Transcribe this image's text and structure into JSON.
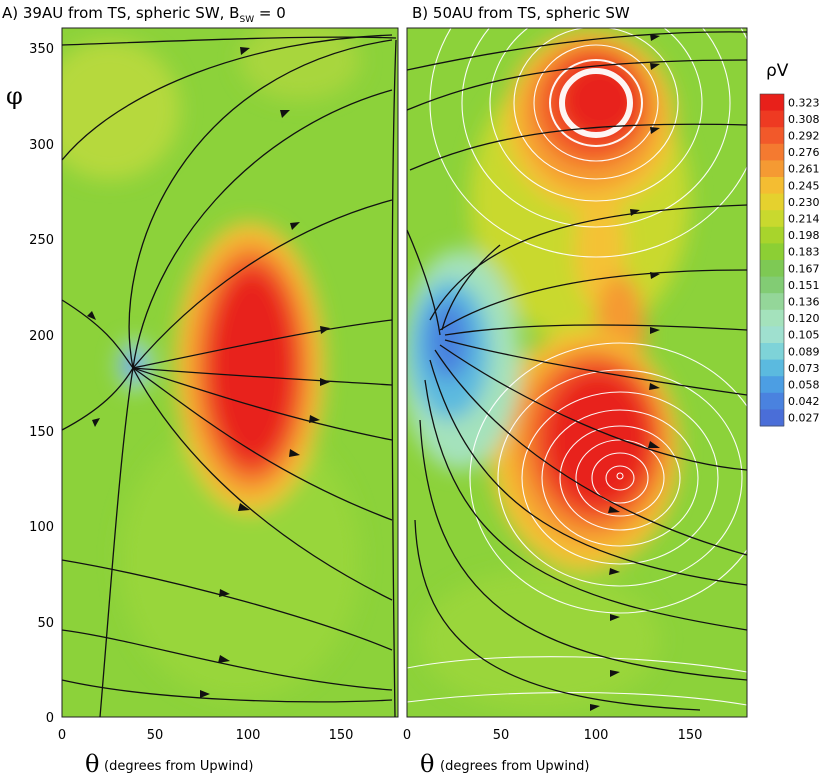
{
  "chart_data": [
    {
      "panel_title": "A) 39AU from TS, spheric SW, B",
      "panel_title_sub": "SW",
      "panel_title_tail": " = 0",
      "type": "heatmap",
      "x_symbol": "θ",
      "xlabel": "(degrees from Upwind)",
      "y_symbol": "φ",
      "xlim": [
        0,
        180
      ],
      "ylim": [
        0,
        360
      ],
      "xticks": [
        "0",
        "50",
        "100",
        "150"
      ],
      "yticks": [
        "0",
        "50",
        "100",
        "150",
        "200",
        "250",
        "300",
        "350"
      ],
      "features": [
        {
          "kind": "max",
          "theta": 100,
          "phi": 180,
          "value": 0.323
        },
        {
          "kind": "min",
          "theta": 37,
          "phi": 185,
          "value": 0.027
        }
      ]
    },
    {
      "panel_title": "B) 50AU from TS, spheric SW",
      "type": "heatmap",
      "x_symbol": "θ",
      "xlabel": "(degrees from Upwind)",
      "xlim": [
        0,
        180
      ],
      "ylim": [
        0,
        360
      ],
      "xticks": [
        "0",
        "50",
        "100",
        "150"
      ],
      "features": [
        {
          "kind": "max",
          "theta": 110,
          "phi": 130,
          "value": 0.323
        },
        {
          "kind": "max",
          "theta": 105,
          "phi": 320,
          "value": 0.308
        },
        {
          "kind": "min",
          "theta": 20,
          "phi": 195,
          "value": 0.027
        }
      ]
    }
  ],
  "colorbar": {
    "label": "ρV",
    "levels": [
      "0.323",
      "0.308",
      "0.292",
      "0.276",
      "0.261",
      "0.245",
      "0.230",
      "0.214",
      "0.198",
      "0.183",
      "0.167",
      "0.151",
      "0.136",
      "0.120",
      "0.105",
      "0.089",
      "0.073",
      "0.058",
      "0.042",
      "0.027"
    ],
    "colors": [
      "#e8201a",
      "#ee3a22",
      "#f2592a",
      "#f47a30",
      "#f59a33",
      "#f4bd32",
      "#e5d12e",
      "#c9d92e",
      "#a8d42c",
      "#8ccf34",
      "#7ec954",
      "#82cc74",
      "#94d699",
      "#a4e2bc",
      "#9fe0cf",
      "#7ed3d8",
      "#5bbadf",
      "#4c9ee3",
      "#4a82df",
      "#4a6ed8"
    ]
  }
}
